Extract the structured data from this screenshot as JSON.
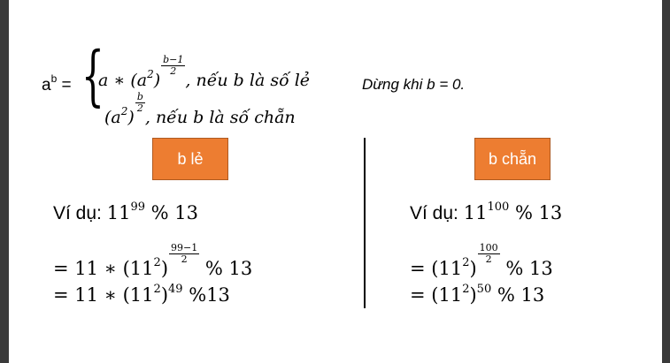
{
  "formula": {
    "lhs_base": "a",
    "lhs_exp": "b",
    "lhs_eq": "=",
    "case_odd_prefix": "a ∗ (a",
    "case_odd_sq": "2",
    "case_odd_close": ")",
    "case_odd_num": "b−1",
    "case_odd_den": "2",
    "case_odd_cond": ",   nếu b là số lẻ",
    "case_even_prefix": "(a",
    "case_even_sq": "2",
    "case_even_close": ")",
    "case_even_num": "b",
    "case_even_den": "2",
    "case_even_cond": ",   nếu b là số chẵn"
  },
  "stop_text": "Dừng khi b = 0.",
  "buttons": {
    "odd_label": "b lẻ",
    "even_label": "b chẵn"
  },
  "left_example": {
    "label": "Ví dụ: ",
    "l1_base": "11",
    "l1_exp": "99",
    "l1_mod": " % 13",
    "l2_prefix": "= 11 ∗ (11",
    "l2_sq": "2",
    "l2_close": ")",
    "l2_num": "99−1",
    "l2_den": "2",
    "l2_mod": " % 13",
    "l3_prefix": "= 11 ∗ (11",
    "l3_sq": "2",
    "l3_close": ")",
    "l3_exp": "49",
    "l3_mod": " %13"
  },
  "right_example": {
    "label": "Ví dụ: ",
    "r1_base": "11",
    "r1_exp": "100",
    "r1_mod": " % 13",
    "r2_prefix": "= (11",
    "r2_sq": "2",
    "r2_close": ")",
    "r2_num": "100",
    "r2_den": "2",
    "r2_mod": " % 13",
    "r3_prefix": "= (11",
    "r3_sq": "2",
    "r3_close": ")",
    "r3_exp": "50",
    "r3_mod": " % 13"
  },
  "colors": {
    "button_bg": "#ed7d31",
    "button_text": "#ffffff",
    "window_edge": "#3a3a3a"
  }
}
